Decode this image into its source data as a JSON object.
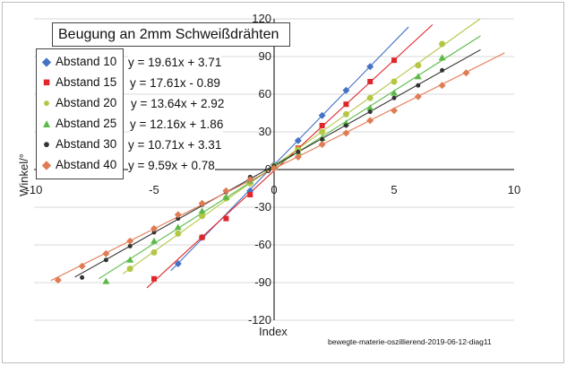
{
  "chart_data": {
    "type": "scatter",
    "title": "Beugung an 2mm Schweißdrähten",
    "xlabel": "Index",
    "ylabel": "Winkel/°",
    "xlim": [
      -10,
      10
    ],
    "ylim": [
      -120,
      120
    ],
    "x_ticks": [
      "-10",
      "-5",
      "0",
      "5",
      "10"
    ],
    "y_ticks": [
      "-120",
      "-90",
      "-60",
      "-30",
      "0",
      "30",
      "60",
      "90",
      "120"
    ],
    "grid": "horizontal",
    "legend_position": "top-left",
    "series": [
      {
        "name": "Abstand 10",
        "color": "#4472C4",
        "marker": "diamond",
        "slope": 19.61,
        "intercept": 3.71,
        "equation": "y = 19.61x + 3.71",
        "x": [
          -4,
          -3,
          -1,
          0,
          1,
          2,
          3,
          4
        ],
        "y": [
          -75,
          -54,
          -17,
          4,
          23,
          43,
          63,
          82
        ]
      },
      {
        "name": "Abstand 15",
        "color": "#E0262B",
        "marker": "square",
        "slope": 17.61,
        "intercept": -0.89,
        "equation": "y = 17.61x - 0.89",
        "x": [
          -5,
          -3,
          -2,
          -1,
          0,
          1,
          2,
          3,
          4,
          5
        ],
        "y": [
          -87,
          -54,
          -39,
          -20,
          2,
          17,
          35,
          52,
          70,
          87
        ]
      },
      {
        "name": "Abstand 20",
        "color": "#B5C645",
        "marker": "circle",
        "slope": 13.64,
        "intercept": 2.92,
        "equation": "y = 13.64x + 2.92",
        "x": [
          -6,
          -5,
          -4,
          -3,
          -2,
          -1,
          0,
          1,
          2,
          3,
          4,
          5,
          6,
          7
        ],
        "y": [
          -79,
          -66,
          -51,
          -37,
          -23,
          -11,
          3,
          16,
          30,
          44,
          57,
          70,
          83,
          100
        ]
      },
      {
        "name": "Abstand 25",
        "color": "#5BBA47",
        "marker": "triangle",
        "slope": 12.16,
        "intercept": 1.86,
        "equation": "y = 12.16x + 1.86",
        "x": [
          -7,
          -6,
          -5,
          -4,
          -3,
          -2,
          -1,
          0,
          1,
          2,
          3,
          4,
          5,
          6,
          7
        ],
        "y": [
          -89,
          -72,
          -57,
          -46,
          -33,
          -22,
          -9,
          2,
          14,
          25,
          37,
          49,
          61,
          74,
          89
        ]
      },
      {
        "name": "Abstand 30",
        "color": "#333333",
        "marker": "dot",
        "slope": 10.71,
        "intercept": 3.31,
        "equation": "y = 10.71x + 3.31",
        "x": [
          -8,
          -7,
          -6,
          -5,
          -4,
          -3,
          -2,
          -1,
          0,
          1,
          2,
          3,
          4,
          5,
          6,
          7
        ],
        "y": [
          -86,
          -72,
          -61,
          -50,
          -39,
          -28,
          -18,
          -6,
          3,
          14,
          24,
          35,
          46,
          57,
          67,
          79
        ]
      },
      {
        "name": "Abstand 40",
        "color": "#E07B54",
        "marker": "diamond",
        "slope": 9.59,
        "intercept": 0.78,
        "equation": "y = 9.59x + 0.78",
        "x": [
          -9,
          -8,
          -7,
          -6,
          -5,
          -4,
          -3,
          -2,
          -1,
          0,
          1,
          2,
          3,
          4,
          5,
          6,
          7,
          8
        ],
        "y": [
          -88,
          -77,
          -67,
          -57,
          -47,
          -36,
          -27,
          -17,
          -8,
          1,
          10,
          20,
          29,
          39,
          47,
          58,
          67,
          77
        ]
      }
    ]
  },
  "source_note": "bewegte-materie-oszillierend-2019-06-12-diag11"
}
